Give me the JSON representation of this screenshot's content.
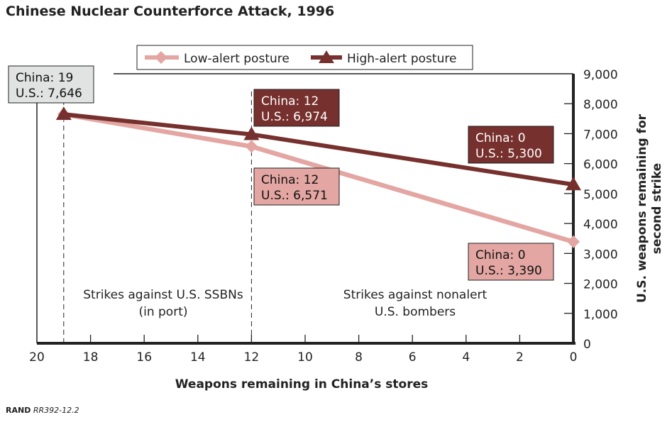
{
  "chart_data": {
    "type": "line",
    "title": "Chinese Nuclear Counterforce Attack, 1996",
    "xlabel": "Weapons remaining in China’s stores",
    "ylabel": "U.S. weapons remaining for second strike",
    "ylabel_lines": [
      "U.S. weapons remaining for",
      "second strike"
    ],
    "xlim": [
      20,
      0
    ],
    "ylim": [
      0,
      9000
    ],
    "x_ticks": [
      20,
      18,
      16,
      14,
      12,
      10,
      8,
      6,
      4,
      2,
      0
    ],
    "y_ticks": [
      0,
      1000,
      2000,
      3000,
      4000,
      5000,
      6000,
      7000,
      8000,
      9000
    ],
    "y_tick_labels": [
      "0",
      "1,000",
      "2,000",
      "3,000",
      "4,000",
      "5,000",
      "6,000",
      "7,000",
      "8,000",
      "9,000"
    ],
    "legend_position": "top",
    "series": [
      {
        "name": "Low-alert posture",
        "color": "#e3a6a2",
        "marker": "diamond",
        "x": [
          19,
          12,
          0
        ],
        "y": [
          7646,
          6571,
          3390
        ]
      },
      {
        "name": "High-alert posture",
        "color": "#76302d",
        "marker": "triangle",
        "x": [
          19,
          12,
          0
        ],
        "y": [
          7646,
          6974,
          5300
        ]
      }
    ],
    "annotations": [
      {
        "lines": [
          "China: 19",
          "U.S.: 7,646"
        ],
        "fill": "#e1e3e2",
        "text_color": "#111111"
      },
      {
        "lines": [
          "China: 12",
          "U.S.: 6,974"
        ],
        "fill": "#76302d",
        "text_color": "#ffffff"
      },
      {
        "lines": [
          "China: 12",
          "U.S.: 6,571"
        ],
        "fill": "#e3a6a2",
        "text_color": "#111111"
      },
      {
        "lines": [
          "China: 0",
          "U.S.: 5,300"
        ],
        "fill": "#76302d",
        "text_color": "#ffffff"
      },
      {
        "lines": [
          "China: 0",
          "U.S.: 3,390"
        ],
        "fill": "#e3a6a2",
        "text_color": "#111111"
      }
    ],
    "region_labels": [
      {
        "lines": [
          "Strikes against U.S. SSBNs",
          "(in port)"
        ]
      },
      {
        "lines": [
          "Strikes against nonalert",
          "U.S. bombers"
        ]
      }
    ],
    "reference_lines_x": [
      19,
      12
    ]
  },
  "footer": {
    "brand": "RAND",
    "code": "RR392-12.2"
  }
}
